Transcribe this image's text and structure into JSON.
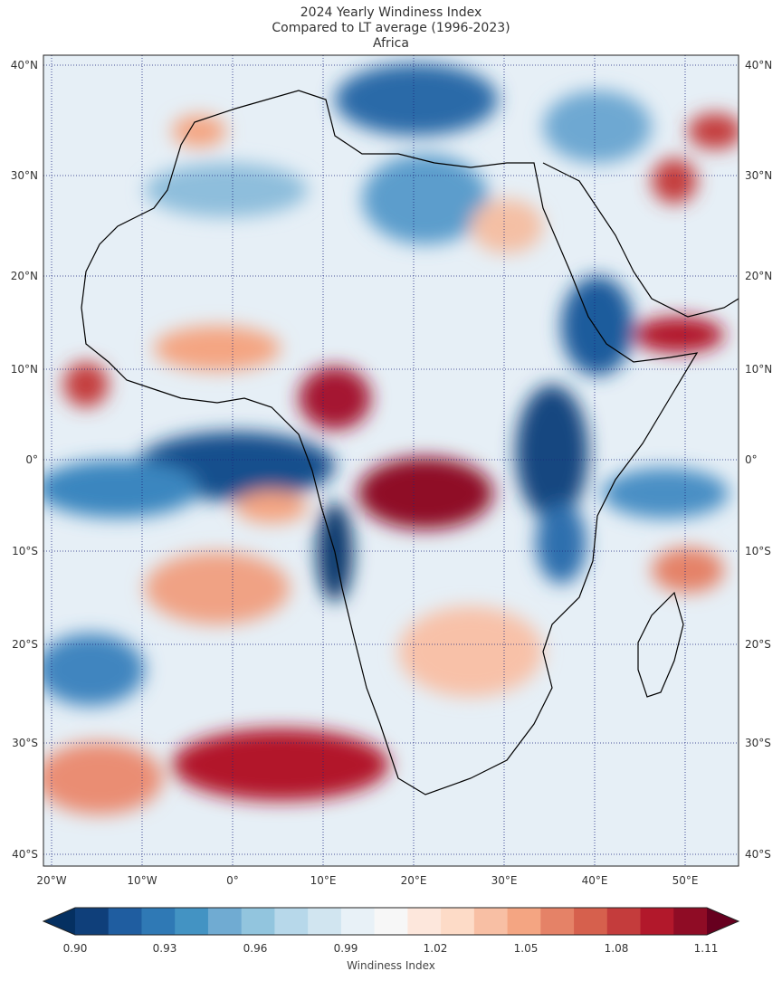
{
  "title": {
    "line1": "2024 Yearly Windiness Index",
    "line2": "Compared to LT average (1996-2023)",
    "line3": "Africa"
  },
  "map": {
    "lon_labels": [
      "20°W",
      "10°W",
      "0°",
      "10°E",
      "20°E",
      "30°E",
      "40°E",
      "50°E"
    ],
    "lat_labels": [
      "40°N",
      "30°N",
      "20°N",
      "10°N",
      "0°",
      "10°S",
      "20°S",
      "30°S",
      "40°S"
    ],
    "gridline_style": "dotted navy"
  },
  "colorbar": {
    "label": "Windiness Index",
    "ticks": [
      "0.90",
      "0.93",
      "0.96",
      "0.99",
      "1.02",
      "1.05",
      "1.08",
      "1.11"
    ],
    "colors": [
      "#053061",
      "#0f3f7a",
      "#1f5da0",
      "#2f79b5",
      "#4393c3",
      "#70abd2",
      "#92c5de",
      "#b7d8ea",
      "#d1e5f0",
      "#e8f1f7",
      "#f7f7f7",
      "#fde7dc",
      "#fddbc7",
      "#f8bfa4",
      "#f4a582",
      "#e58267",
      "#d6604d",
      "#c43c3c",
      "#b2182b",
      "#8f0c25",
      "#67001f"
    ]
  }
}
